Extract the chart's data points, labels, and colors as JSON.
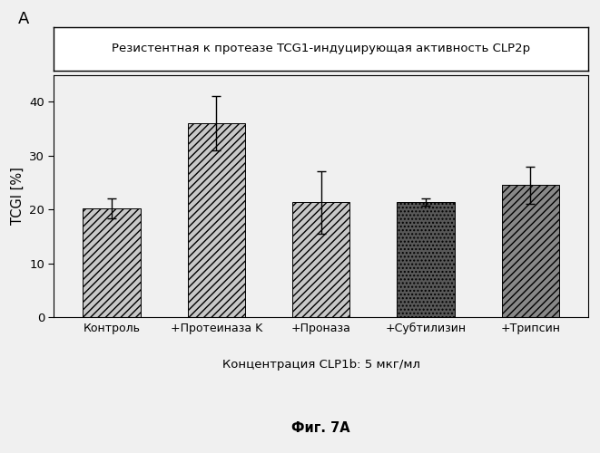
{
  "categories": [
    "Контроль",
    "+Протеиназа K",
    "+Проназа",
    "+Субтилизин",
    "+Трипсин"
  ],
  "values": [
    20.2,
    36.0,
    21.3,
    21.4,
    24.5
  ],
  "errors": [
    1.8,
    5.0,
    5.8,
    0.7,
    3.5
  ],
  "ylabel": "TCGI [%]",
  "ylim": [
    0,
    45
  ],
  "yticks": [
    0,
    10,
    20,
    30,
    40
  ],
  "title_box": "Резистентная к протеазе TCG1-индуцирующая активность CLP2p",
  "xlabel": "Концентрация CLP1b: 5 мкг/мл",
  "fig_label": "Фиг. 7A",
  "panel_label": "A",
  "bar_colors": [
    "#b0b0b0",
    "#b0b0b0",
    "#b0b0b0",
    "#606060",
    "#808080"
  ],
  "background_color": "#f0f0f0",
  "bar_width": 0.55,
  "fig_width": 6.61,
  "fig_height": 5.0,
  "dpi": 100
}
